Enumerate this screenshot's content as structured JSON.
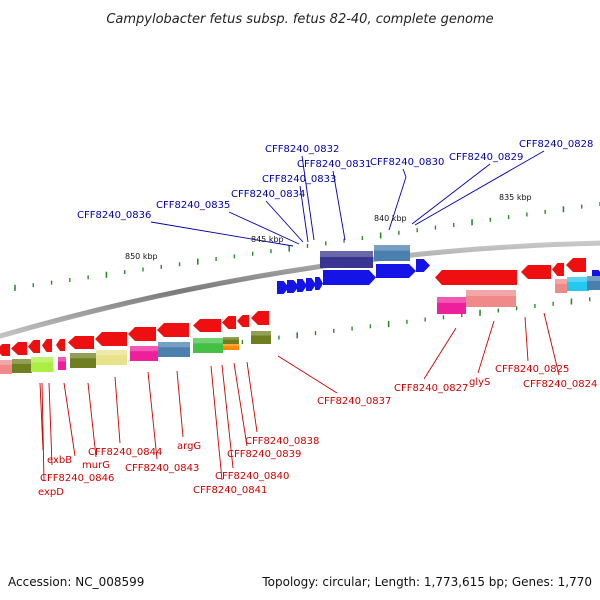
{
  "title": "Campylobacter fetus subsp. fetus 82-40, complete genome",
  "footer": {
    "accession": "Accession: NC_008599",
    "summary": "Topology: circular; Length: 1,773,615 bp; Genes: 1,770"
  },
  "colors": {
    "backbone": "#8a8a8a",
    "forward_label": "#0000aa",
    "reverse_label": "#cc0000",
    "tick": "#2a8a2a"
  },
  "kbp_labels": [
    "850 kbp",
    "845 kbp",
    "840 kbp",
    "835 kbp"
  ],
  "forward_labels": [
    "CFF8240_0836",
    "CFF8240_0835",
    "CFF8240_0834",
    "CFF8240_0833",
    "CFF8240_0832",
    "CFF8240_0831",
    "CFF8240_0830",
    "CFF8240_0829",
    "CFF8240_0828"
  ],
  "reverse_labels": [
    "expD",
    "CFF8240_0846",
    "exbB",
    "murG",
    "CFF8240_0844",
    "CFF8240_0843",
    "argG",
    "CFF8240_0841",
    "CFF8240_0840",
    "CFF8240_0839",
    "CFF8240_0838",
    "CFF8240_0837",
    "CFF8240_0827",
    "glyS",
    "CFF8240_0825",
    "CFF8240_0824"
  ]
}
